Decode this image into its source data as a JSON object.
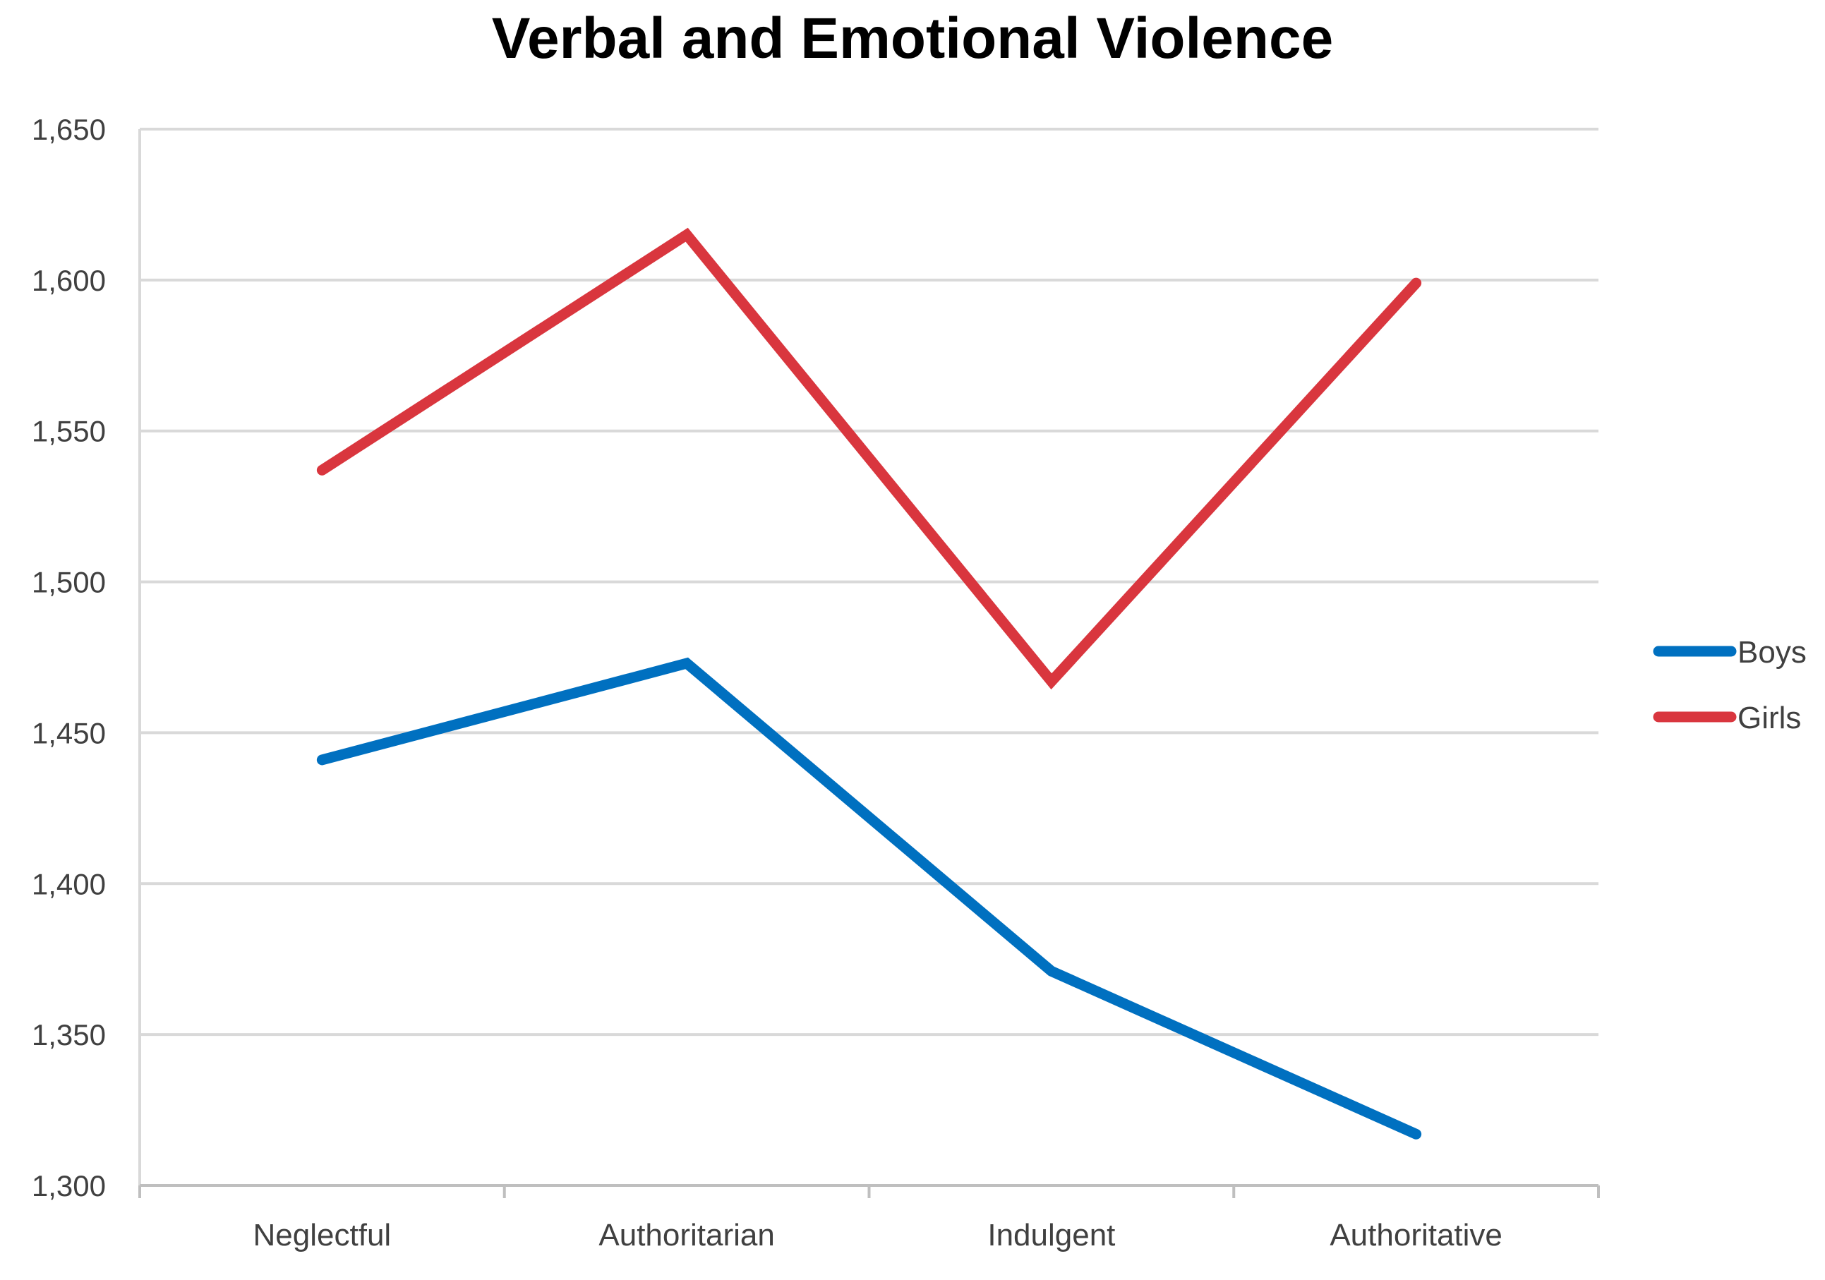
{
  "chart_data": {
    "type": "line",
    "title": "Verbal and Emotional Violence",
    "xlabel": "",
    "ylabel": "",
    "categories": [
      "Neglectful",
      "Authoritarian",
      "Indulgent",
      "Authoritative"
    ],
    "ylim": [
      1300,
      1650
    ],
    "yticks": [
      1300,
      1350,
      1400,
      1450,
      1500,
      1550,
      1600,
      1650
    ],
    "ytick_labels": [
      "1,300",
      "1,350",
      "1,400",
      "1,450",
      "1,500",
      "1,550",
      "1,600",
      "1,650"
    ],
    "grid": true,
    "legend_position": "right",
    "series": [
      {
        "name": "Boys",
        "color": "#0070C0",
        "values": [
          1441,
          1473,
          1371,
          1317
        ]
      },
      {
        "name": "Girls",
        "color": "#D9363E",
        "values": [
          1537,
          1615,
          1467,
          1599
        ]
      }
    ]
  }
}
